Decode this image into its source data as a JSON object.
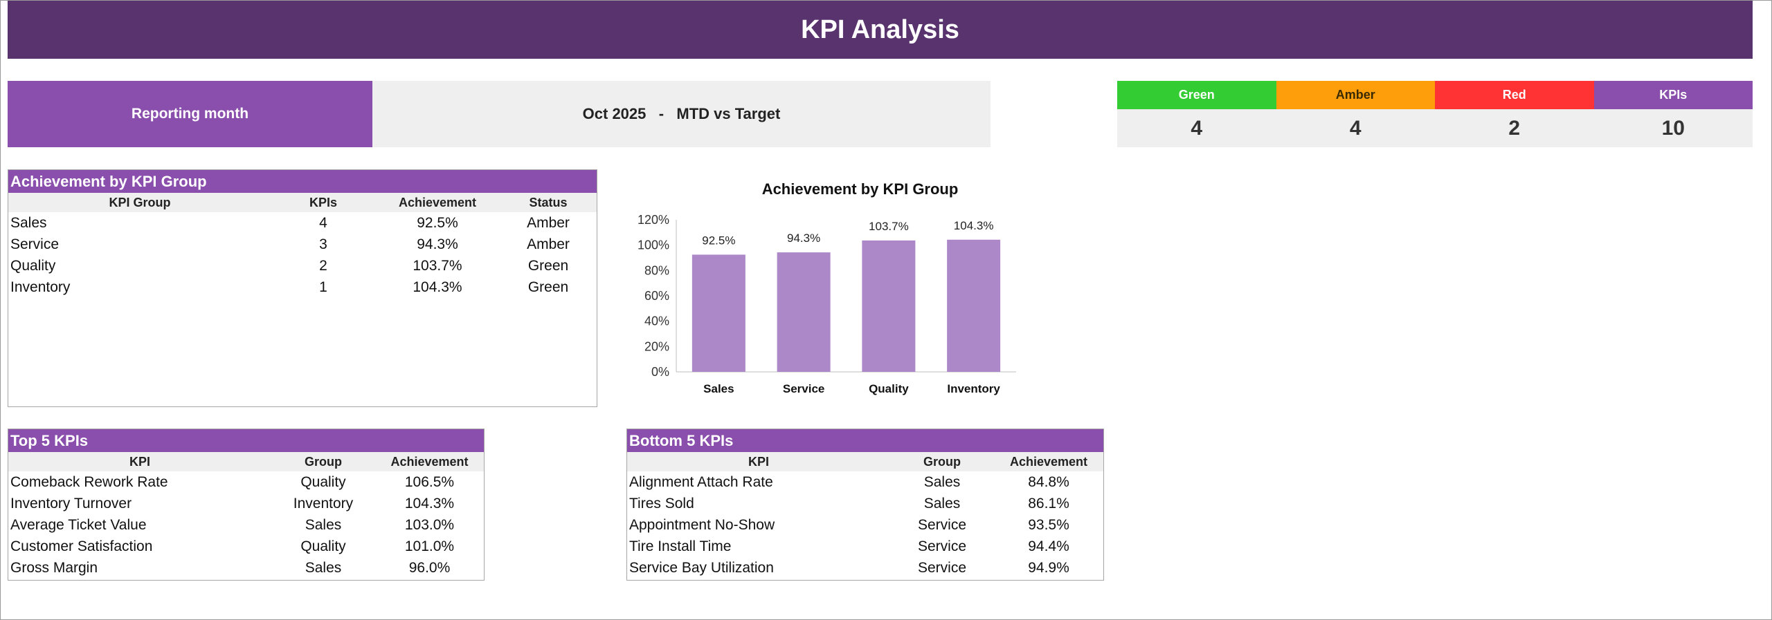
{
  "title": "KPI Analysis",
  "reporting": {
    "label": "Reporting month",
    "value": "Oct 2025   -   MTD vs Target"
  },
  "summary": [
    {
      "label": "Green",
      "value": "4",
      "color": "#33cc33",
      "text_color": "#ffffff"
    },
    {
      "label": "Amber",
      "value": "4",
      "color": "#ff9e0b",
      "text_color": "#3a2a00"
    },
    {
      "label": "Red",
      "value": "2",
      "color": "#ff3333",
      "text_color": "#ffffff"
    },
    {
      "label": "KPIs",
      "value": "10",
      "color": "#8a4fad",
      "text_color": "#ffffff"
    }
  ],
  "group_table": {
    "title": "Achievement by KPI Group",
    "headers": [
      "KPI Group",
      "KPIs",
      "Achievement",
      "Status"
    ],
    "rows": [
      [
        "Sales",
        "4",
        "92.5%",
        "Amber"
      ],
      [
        "Service",
        "3",
        "94.3%",
        "Amber"
      ],
      [
        "Quality",
        "2",
        "103.7%",
        "Green"
      ],
      [
        "Inventory",
        "1",
        "104.3%",
        "Green"
      ]
    ]
  },
  "top_table": {
    "title": "Top 5 KPIs",
    "headers": [
      "KPI",
      "Group",
      "Achievement"
    ],
    "rows": [
      [
        "Comeback Rework Rate",
        "Quality",
        "106.5%"
      ],
      [
        "Inventory Turnover",
        "Inventory",
        "104.3%"
      ],
      [
        "Average Ticket Value",
        "Sales",
        "103.0%"
      ],
      [
        "Customer Satisfaction",
        "Quality",
        "101.0%"
      ],
      [
        "Gross Margin",
        "Sales",
        "96.0%"
      ]
    ]
  },
  "bottom_table": {
    "title": "Bottom 5 KPIs",
    "headers": [
      "KPI",
      "Group",
      "Achievement"
    ],
    "rows": [
      [
        "Alignment Attach Rate",
        "Sales",
        "84.8%"
      ],
      [
        "Tires Sold",
        "Sales",
        "86.1%"
      ],
      [
        "Appointment No-Show",
        "Service",
        "93.5%"
      ],
      [
        "Tire Install Time",
        "Service",
        "94.4%"
      ],
      [
        "Service Bay Utilization",
        "Service",
        "94.9%"
      ]
    ]
  },
  "chart_data": {
    "type": "bar",
    "title": "Achievement by KPI Group",
    "categories": [
      "Sales",
      "Service",
      "Quality",
      "Inventory"
    ],
    "values": [
      92.5,
      94.3,
      103.7,
      104.3
    ],
    "data_labels": [
      "92.5%",
      "94.3%",
      "103.7%",
      "104.3%"
    ],
    "y_ticks": [
      "0%",
      "20%",
      "40%",
      "60%",
      "80%",
      "100%",
      "120%"
    ],
    "ylim": [
      0,
      120
    ],
    "grid": false,
    "legend": "none",
    "bar_color": "#ac88c8"
  }
}
